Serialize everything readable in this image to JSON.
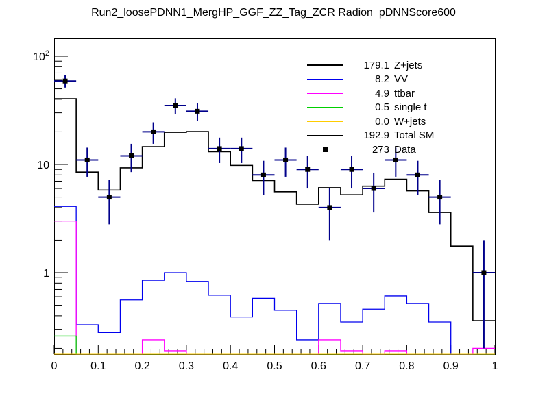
{
  "title": "Run2_loosePDNN1_MergHP_GGF_ZZ_Tag_ZCR Radion  pDNNScore600",
  "legend": {
    "items": [
      {
        "value": "179.1",
        "label": "Z+jets",
        "color": "#000000",
        "type": "line"
      },
      {
        "value": "8.2",
        "label": "VV",
        "color": "#0000ee",
        "type": "line"
      },
      {
        "value": "4.9",
        "label": "ttbar",
        "color": "#ff00ff",
        "type": "line"
      },
      {
        "value": "0.5",
        "label": "single t",
        "color": "#00d000",
        "type": "line"
      },
      {
        "value": "0.0",
        "label": "W+jets",
        "color": "#ffcc00",
        "type": "line"
      },
      {
        "value": "192.9",
        "label": "Total SM",
        "color": "#000000",
        "type": "line"
      },
      {
        "value": "273",
        "label": "Data",
        "color": "#000000",
        "type": "marker"
      }
    ]
  },
  "axes": {
    "x": {
      "min": 0,
      "max": 1,
      "tick_labels": [
        "0",
        "0.1",
        "0.2",
        "0.3",
        "0.4",
        "0.5",
        "0.6",
        "0.7",
        "0.8",
        "0.9",
        "1"
      ],
      "minor_tick_step": 0.02
    },
    "y": {
      "scale": "log",
      "min": 0.177,
      "max": 146,
      "major_ticks": [
        {
          "value": 100,
          "base": "10",
          "sup": "2"
        },
        {
          "value": 10,
          "base": "10",
          "sup": ""
        },
        {
          "value": 1,
          "base": "1",
          "sup": ""
        }
      ]
    }
  },
  "chart_data": {
    "type": "histogram",
    "title": "Run2_loosePDNN1_MergHP_GGF_ZZ_Tag_ZCR Radion  pDNNScore600",
    "x_range": [
      0,
      1
    ],
    "y_scale": "log",
    "y_range": [
      0.177,
      146
    ],
    "grid": false,
    "legend_position": "top-right-inside",
    "bin_edges": [
      0,
      0.05,
      0.1,
      0.15,
      0.2,
      0.25,
      0.3,
      0.35,
      0.4,
      0.45,
      0.5,
      0.55,
      0.6,
      0.65,
      0.7,
      0.75,
      0.8,
      0.85,
      0.9,
      0.95,
      1.0
    ],
    "series": [
      {
        "name": "Z+jets",
        "legend_yield": "179.1",
        "color": "#000000",
        "draw": false,
        "note": "black line coincides with Total SM line in the plot",
        "values": [
          40.5,
          8.5,
          5.8,
          9.3,
          14.6,
          19.8,
          20.1,
          13.1,
          9.8,
          7.1,
          5.6,
          4.3,
          6.1,
          5.25,
          6.3,
          7.3,
          5.7,
          3.6,
          1.76,
          0.36
        ]
      },
      {
        "name": "VV",
        "legend_yield": "8.2",
        "color": "#0000ee",
        "draw": true,
        "values": [
          4.1,
          0.33,
          0.28,
          0.56,
          0.85,
          1.0,
          0.83,
          0.62,
          0.39,
          0.58,
          0.45,
          0.24,
          0.52,
          0.35,
          0.46,
          0.61,
          0.52,
          0.35,
          0,
          0
        ]
      },
      {
        "name": "ttbar",
        "legend_yield": "4.9",
        "color": "#ff00ff",
        "draw": true,
        "values": [
          3.0,
          0,
          0,
          0,
          0.24,
          0.19,
          0,
          0,
          0,
          0,
          0,
          0,
          0.24,
          0.19,
          0,
          0.19,
          0,
          0,
          0,
          0.2
        ]
      },
      {
        "name": "single t",
        "legend_yield": "0.5",
        "color": "#00d000",
        "draw": true,
        "values": [
          0.26,
          0,
          0,
          0,
          0,
          0,
          0,
          0,
          0,
          0,
          0,
          0,
          0,
          0,
          0,
          0,
          0,
          0,
          0,
          0
        ]
      },
      {
        "name": "W+jets",
        "legend_yield": "0.0",
        "color": "#ffcc00",
        "draw": true,
        "values": [
          0,
          0,
          0,
          0,
          0,
          0,
          0,
          0,
          0,
          0,
          0,
          0,
          0,
          0,
          0,
          0,
          0,
          0,
          0,
          0
        ]
      },
      {
        "name": "Total SM",
        "legend_yield": "192.9",
        "color": "#000000",
        "draw": true,
        "values": [
          40.5,
          8.5,
          5.8,
          9.3,
          14.6,
          19.8,
          20.1,
          13.1,
          9.8,
          7.1,
          5.6,
          4.3,
          6.1,
          5.25,
          6.3,
          7.3,
          5.7,
          3.6,
          1.76,
          0.36
        ]
      }
    ],
    "data_points": {
      "name": "Data",
      "legend_yield": "273",
      "marker_color": "#000000",
      "error_color": "#00008b",
      "x": [
        0.025,
        0.075,
        0.125,
        0.175,
        0.225,
        0.275,
        0.325,
        0.375,
        0.425,
        0.475,
        0.525,
        0.575,
        0.625,
        0.675,
        0.725,
        0.775,
        0.825,
        0.875,
        0.925,
        0.975
      ],
      "y": [
        59,
        11,
        5,
        12,
        20,
        35,
        31,
        14,
        14,
        8,
        11,
        9,
        4,
        9,
        6,
        11,
        8,
        5,
        null,
        1
      ],
      "err": [
        [
          51.3,
          66.7
        ],
        [
          7.7,
          14.3
        ],
        [
          2.8,
          7.2
        ],
        [
          8.5,
          15.5
        ],
        [
          15.5,
          24.5
        ],
        [
          29.1,
          40.9
        ],
        [
          25.4,
          36.6
        ],
        [
          10.3,
          17.7
        ],
        [
          10.3,
          17.7
        ],
        [
          5.2,
          10.8
        ],
        [
          7.7,
          14.3
        ],
        [
          6,
          12
        ],
        [
          2,
          6
        ],
        [
          6,
          12
        ],
        [
          3.6,
          8.4
        ],
        [
          7.7,
          14.3
        ],
        [
          5.2,
          10.8
        ],
        [
          2.8,
          7.2
        ],
        null,
        [
          0.2,
          2.0
        ]
      ]
    }
  }
}
